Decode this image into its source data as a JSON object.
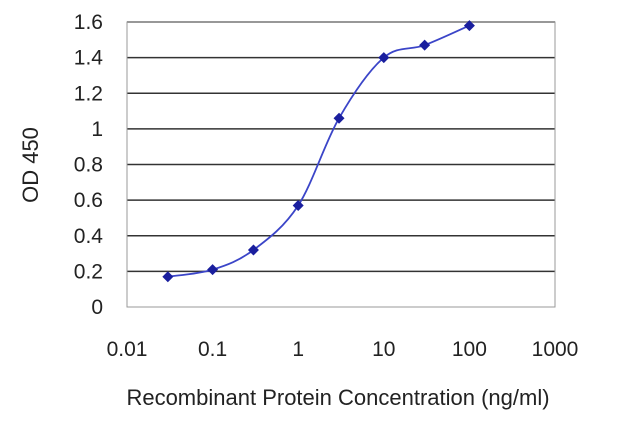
{
  "chart_data": {
    "type": "line",
    "title": "",
    "xlabel": "Recombinant Protein Concentration (ng/ml)",
    "ylabel": "OD 450",
    "x_scale": "log",
    "xlim": [
      0.01,
      1000
    ],
    "ylim": [
      0,
      1.6
    ],
    "x_ticks": [
      "0.01",
      "0.1",
      "1",
      "10",
      "100",
      "1000"
    ],
    "y_ticks": [
      "0",
      "0.2",
      "0.4",
      "0.6",
      "0.8",
      "1",
      "1.2",
      "1.4",
      "1.6"
    ],
    "grid": "horizontal",
    "legend": "none",
    "series": [
      {
        "x": [
          0.03,
          0.1,
          0.3,
          1,
          3,
          10,
          30,
          100
        ],
        "y": [
          0.17,
          0.21,
          0.32,
          0.57,
          1.06,
          1.4,
          1.47,
          1.58
        ]
      }
    ],
    "colors": {
      "line": "#3b45c8",
      "marker": "#1a1f9e",
      "grid": "#333333",
      "frame": "#999999"
    }
  }
}
